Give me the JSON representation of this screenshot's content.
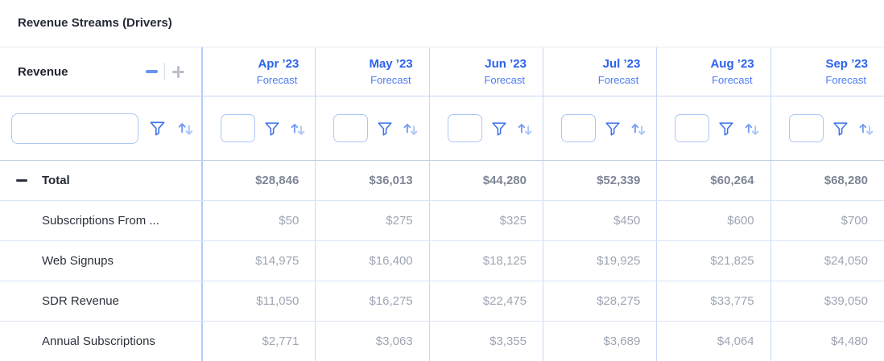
{
  "title": "Revenue Streams (Drivers)",
  "table": {
    "group": {
      "label": "Revenue"
    },
    "sub_header": "Forecast",
    "columns": [
      "Apr ’23",
      "May ’23",
      "Jun ’23",
      "Jul ’23",
      "Aug ’23",
      "Sep ’23"
    ],
    "filters": {
      "placeholder": ""
    },
    "rows": [
      {
        "label": "Total",
        "type": "total",
        "values": [
          "$28,846",
          "$36,013",
          "$44,280",
          "$52,339",
          "$60,264",
          "$68,280"
        ]
      },
      {
        "label": "Subscriptions From ...",
        "type": "sub",
        "values": [
          "$50",
          "$275",
          "$325",
          "$450",
          "$600",
          "$700"
        ]
      },
      {
        "label": "Web Signups",
        "type": "sub",
        "values": [
          "$14,975",
          "$16,400",
          "$18,125",
          "$19,925",
          "$21,825",
          "$24,050"
        ]
      },
      {
        "label": "SDR Revenue",
        "type": "sub",
        "values": [
          "$11,050",
          "$16,275",
          "$22,475",
          "$28,275",
          "$33,775",
          "$39,050"
        ]
      },
      {
        "label": "Annual Subscriptions",
        "type": "sub",
        "values": [
          "$2,771",
          "$3,063",
          "$3,355",
          "$3,689",
          "$4,064",
          "$4,480"
        ]
      }
    ],
    "icons": {
      "filter": "funnel-icon",
      "sort": "sort-arrows-icon",
      "collapse": "minus-icon",
      "expand": "plus-icon"
    },
    "colors": {
      "month_header": "#2b63eb",
      "forecast": "#4d7df1",
      "filter_icon": "#3d72ed",
      "sort_up": "#769df3",
      "sort_down": "#afc7f8",
      "total_value": "#7e8595",
      "sub_value": "#9ea5b3",
      "label_text": "#2b303c",
      "column_border": "#c8d7f8"
    }
  }
}
